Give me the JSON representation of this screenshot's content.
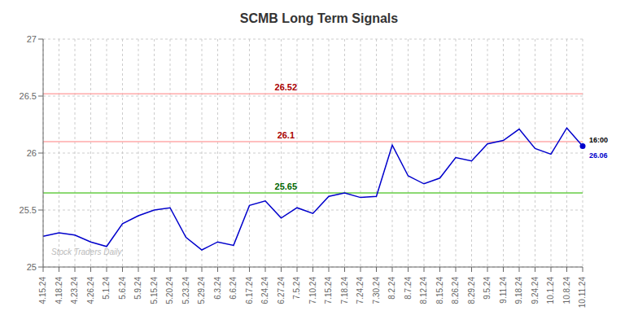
{
  "chart_data": {
    "type": "line",
    "title": "SCMB Long Term Signals",
    "categories": [
      "4.15.24",
      "4.18.24",
      "4.23.24",
      "4.26.24",
      "5.1.24",
      "5.6.24",
      "5.9.24",
      "5.15.24",
      "5.20.24",
      "5.23.24",
      "5.29.24",
      "6.3.24",
      "6.6.24",
      "6.17.24",
      "6.24.24",
      "6.27.24",
      "7.5.24",
      "7.10.24",
      "7.15.24",
      "7.18.24",
      "7.24.24",
      "7.30.24",
      "8.2.24",
      "8.7.24",
      "8.12.24",
      "8.15.24",
      "8.26.24",
      "8.29.24",
      "9.5.24",
      "9.11.24",
      "9.18.24",
      "9.24.24",
      "10.1.24",
      "10.8.24",
      "10.11.24"
    ],
    "values": [
      25.27,
      25.3,
      25.28,
      25.22,
      25.18,
      25.38,
      25.45,
      25.5,
      25.52,
      25.26,
      25.15,
      25.22,
      25.19,
      25.54,
      25.58,
      25.43,
      25.52,
      25.47,
      25.62,
      25.65,
      25.61,
      25.62,
      26.07,
      25.8,
      25.73,
      25.78,
      25.96,
      25.93,
      26.08,
      26.11,
      26.21,
      26.04,
      25.99,
      26.22,
      26.06
    ],
    "color": "#0000cc",
    "ylim": [
      25.0,
      27.0
    ],
    "yticks": [
      25,
      25.5,
      26,
      26.5,
      27
    ],
    "grid": true,
    "reference_lines": [
      {
        "y": 26.52,
        "label": "26.52",
        "color": "#ffaaaa",
        "label_color": "#aa0000"
      },
      {
        "y": 26.1,
        "label": "26.1",
        "color": "#ffaaaa",
        "label_color": "#aa0000"
      },
      {
        "y": 25.65,
        "label": "25.65",
        "color": "#66cc44",
        "label_color": "#006600"
      }
    ],
    "annotations": [
      "16:00",
      "26.06"
    ],
    "watermark": "Stock Traders Daily",
    "watermark_color": "#bbbbbb"
  }
}
